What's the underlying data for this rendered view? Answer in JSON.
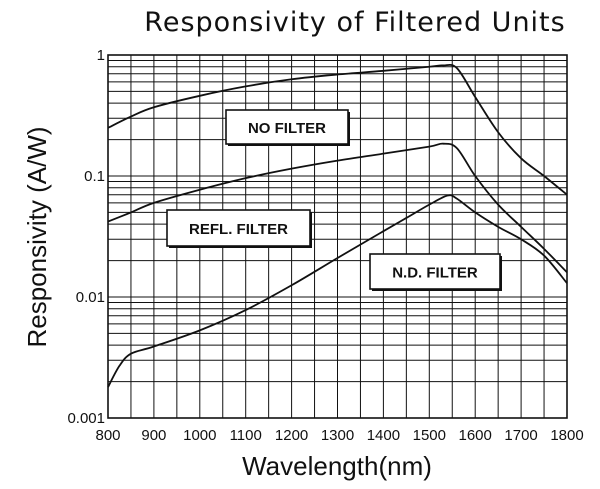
{
  "chart_data": {
    "type": "line",
    "title": "Responsivity of Filtered Units",
    "xlabel": "Wavelength(nm)",
    "ylabel": "Responsivity (A/W)",
    "xlim": [
      800,
      1800
    ],
    "ylim": [
      0.001,
      1
    ],
    "yscale": "log",
    "grid": true,
    "x_ticks": [
      800,
      900,
      1000,
      1100,
      1200,
      1300,
      1400,
      1500,
      1600,
      1700,
      1800
    ],
    "x_tick_labels": [
      "800",
      "900",
      "1000",
      "1100",
      "1200",
      "1300",
      "1400",
      "1500",
      "1600",
      "1700",
      "1800"
    ],
    "y_ticks": [
      0.001,
      0.01,
      0.1,
      1
    ],
    "y_tick_labels": [
      "0.001",
      "0.01",
      "0.1",
      "1"
    ],
    "series": [
      {
        "name": "NO FILTER",
        "x": [
          800,
          850,
          900,
          1000,
          1100,
          1200,
          1300,
          1400,
          1500,
          1530,
          1560,
          1600,
          1650,
          1700,
          1750,
          1800
        ],
        "y": [
          0.25,
          0.31,
          0.37,
          0.46,
          0.55,
          0.63,
          0.69,
          0.74,
          0.8,
          0.82,
          0.78,
          0.45,
          0.23,
          0.14,
          0.1,
          0.07
        ]
      },
      {
        "name": "REFL. FILTER",
        "x": [
          800,
          850,
          900,
          1000,
          1100,
          1200,
          1300,
          1400,
          1500,
          1530,
          1560,
          1600,
          1650,
          1700,
          1750,
          1800
        ],
        "y": [
          0.042,
          0.05,
          0.06,
          0.077,
          0.096,
          0.115,
          0.134,
          0.153,
          0.175,
          0.185,
          0.17,
          0.1,
          0.058,
          0.038,
          0.025,
          0.016
        ]
      },
      {
        "name": "N.D. FILTER",
        "x": [
          800,
          825,
          850,
          900,
          1000,
          1100,
          1200,
          1300,
          1400,
          1450,
          1500,
          1540,
          1560,
          1600,
          1650,
          1700,
          1750,
          1800
        ],
        "y": [
          0.0018,
          0.0027,
          0.0034,
          0.0039,
          0.0053,
          0.0078,
          0.0125,
          0.021,
          0.035,
          0.045,
          0.058,
          0.069,
          0.065,
          0.05,
          0.038,
          0.03,
          0.022,
          0.013
        ]
      }
    ]
  }
}
